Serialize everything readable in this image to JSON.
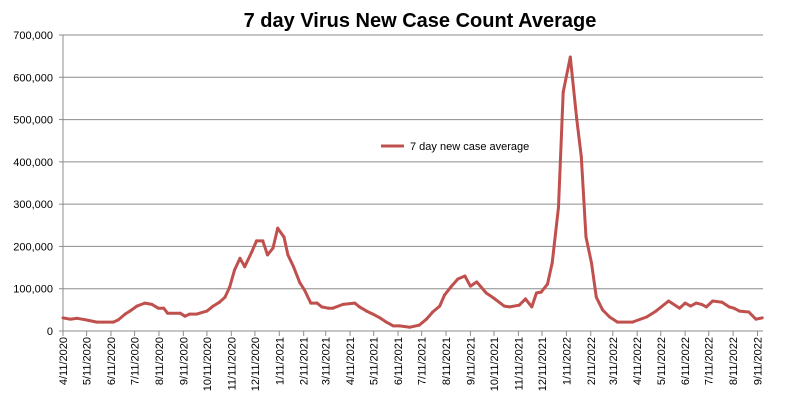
{
  "chart_data": {
    "type": "line",
    "title": "7 day Virus New Case Count Average",
    "xlabel": "",
    "ylabel": "",
    "ylim": [
      0,
      700000
    ],
    "yticks": [
      "0",
      "100,000",
      "200,000",
      "300,000",
      "400,000",
      "500,000",
      "600,000",
      "700,000"
    ],
    "xlim": [
      "2020-04-11",
      "2022-09-18"
    ],
    "xticks": [
      "4/11/2020",
      "5/11/2020",
      "6/11/2020",
      "7/11/2020",
      "8/11/2020",
      "9/11/2020",
      "10/11/2020",
      "11/11/2020",
      "12/11/2020",
      "1/11/2021",
      "2/11/2021",
      "3/11/2021",
      "4/11/2021",
      "5/11/2021",
      "6/11/2021",
      "7/11/2021",
      "8/11/2021",
      "9/11/2021",
      "10/11/2021",
      "11/11/2021",
      "12/11/2021",
      "1/11/2022",
      "2/11/2022",
      "3/11/2022",
      "4/11/2022",
      "5/11/2022",
      "6/11/2022",
      "7/11/2022",
      "8/11/2022",
      "9/11/2022"
    ],
    "grid": true,
    "legend_position": "center",
    "series": [
      {
        "name": "7 day new case average",
        "color": "#c0504d",
        "x": [
          "2020-04-11",
          "2020-04-20",
          "2020-04-29",
          "2020-05-11",
          "2020-05-24",
          "2020-06-14",
          "2020-06-20",
          "2020-06-29",
          "2020-07-05",
          "2020-07-14",
          "2020-07-24",
          "2020-08-02",
          "2020-08-10",
          "2020-08-17",
          "2020-08-22",
          "2020-09-07",
          "2020-09-13",
          "2020-09-19",
          "2020-09-28",
          "2020-10-11",
          "2020-10-19",
          "2020-10-27",
          "2020-11-03",
          "2020-11-09",
          "2020-11-15",
          "2020-11-22",
          "2020-11-28",
          "2020-12-07",
          "2020-12-13",
          "2020-12-21",
          "2020-12-27",
          "2021-01-03",
          "2021-01-09",
          "2021-01-17",
          "2021-01-22",
          "2021-01-29",
          "2021-02-06",
          "2021-02-12",
          "2021-02-20",
          "2021-02-28",
          "2021-03-06",
          "2021-03-14",
          "2021-03-20",
          "2021-04-02",
          "2021-04-17",
          "2021-04-23",
          "2021-05-02",
          "2021-05-10",
          "2021-05-19",
          "2021-05-27",
          "2021-06-05",
          "2021-06-13",
          "2021-06-26",
          "2021-07-08",
          "2021-07-17",
          "2021-07-25",
          "2021-08-03",
          "2021-08-09",
          "2021-08-18",
          "2021-08-26",
          "2021-09-04",
          "2021-09-11",
          "2021-09-19",
          "2021-10-01",
          "2021-10-12",
          "2021-10-24",
          "2021-10-31",
          "2021-11-12",
          "2021-11-20",
          "2021-11-28",
          "2021-12-04",
          "2021-12-10",
          "2021-12-18",
          "2021-12-24",
          "2022-01-01",
          "2022-01-07",
          "2022-01-16",
          "2022-01-24",
          "2022-01-30",
          "2022-02-05",
          "2022-02-12",
          "2022-02-18",
          "2022-02-26",
          "2022-03-07",
          "2022-03-17",
          "2022-04-05",
          "2022-04-23",
          "2022-05-05",
          "2022-05-21",
          "2022-06-04",
          "2022-06-11",
          "2022-06-18",
          "2022-06-25",
          "2022-07-02",
          "2022-07-08",
          "2022-07-16",
          "2022-07-28",
          "2022-08-06",
          "2022-08-12",
          "2022-08-19",
          "2022-08-31",
          "2022-09-09",
          "2022-09-17"
        ],
        "values": [
          31000,
          28000,
          30000,
          26000,
          21000,
          21000,
          26000,
          40000,
          47000,
          59000,
          66000,
          63000,
          54000,
          54000,
          42000,
          42000,
          35000,
          40000,
          40000,
          47000,
          59000,
          68000,
          80000,
          104000,
          144000,
          172000,
          152000,
          187000,
          213000,
          213000,
          180000,
          196000,
          243000,
          222000,
          180000,
          152000,
          115000,
          97000,
          66000,
          66000,
          57000,
          54000,
          54000,
          63000,
          66000,
          57000,
          47000,
          40000,
          31000,
          21000,
          12000,
          12000,
          9000,
          14000,
          28000,
          45000,
          59000,
          85000,
          106000,
          123000,
          130000,
          106000,
          116000,
          90000,
          76000,
          59000,
          57000,
          61000,
          76000,
          57000,
          90000,
          92000,
          111000,
          161000,
          293000,
          565000,
          648000,
          504000,
          412000,
          222000,
          161000,
          80000,
          50000,
          33000,
          21000,
          21000,
          33000,
          47000,
          71000,
          54000,
          66000,
          59000,
          66000,
          63000,
          57000,
          71000,
          68000,
          57000,
          54000,
          47000,
          45000,
          28000,
          31000
        ]
      }
    ]
  }
}
